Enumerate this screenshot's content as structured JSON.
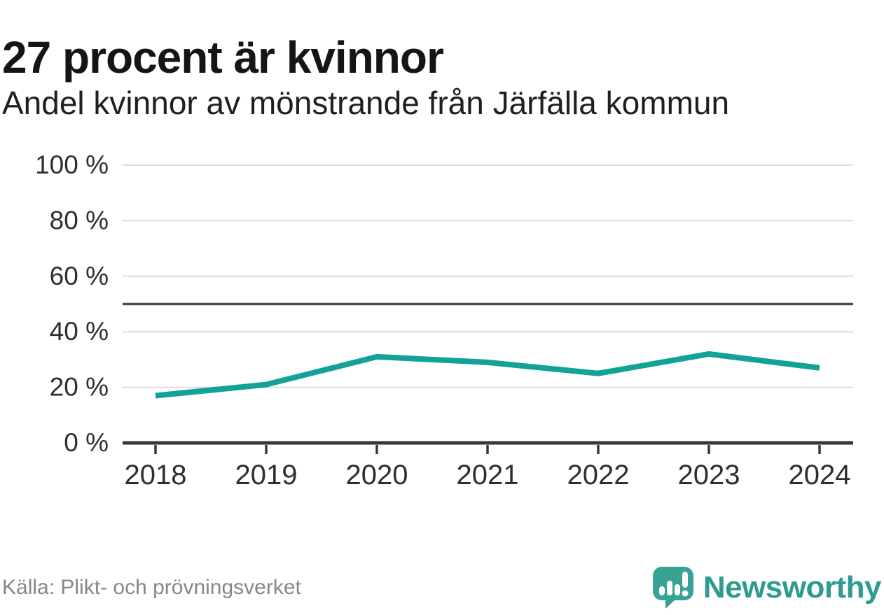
{
  "header": {
    "title": "27 procent är kvinnor",
    "subtitle": "Andel kvinnor av mönstrande från Järfälla kommun"
  },
  "chart_data": {
    "type": "line",
    "x": [
      "2018",
      "2019",
      "2020",
      "2021",
      "2022",
      "2023",
      "2024"
    ],
    "series": [
      {
        "name": "Andel kvinnor av mönstrande",
        "values": [
          17,
          21,
          31,
          29,
          25,
          32,
          27
        ]
      }
    ],
    "title": "27 procent är kvinnor",
    "subtitle": "Andel kvinnor av mönstrande från Järfälla kommun",
    "xlabel": "",
    "ylabel": "",
    "ylim": [
      0,
      100
    ],
    "yticks": [
      0,
      20,
      40,
      60,
      80,
      100
    ],
    "ytick_suffix": " %",
    "reference_line": {
      "value": 50,
      "color": "#4d4d4d"
    },
    "grid": true,
    "legend_position": "none",
    "line_color": "#12a396",
    "grid_color": "#dcdcdc",
    "axis_color": "#383838",
    "tick_label_color": "#2e2e2e"
  },
  "footer": {
    "source": "Källa: Plikt- och prövningsverket",
    "brand": "Newsworthy",
    "brand_text_color": "#2f9a90",
    "brand_icon_color": "#38a295",
    "logo_icon": "newsworthy-bubble-chart-icon"
  }
}
